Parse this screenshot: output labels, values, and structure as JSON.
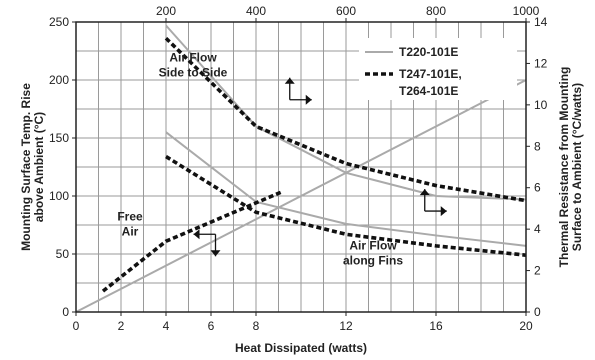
{
  "chart_data": {
    "type": "line",
    "xlabel": "Heat Dissipated (watts)",
    "ylabel_left": [
      "Mounting Surface Temp. Rise",
      "above Ambient (°C)"
    ],
    "ylabel_right": [
      "Thermal Resistance from Mounting",
      "Surface to Ambient (°C/watts)"
    ],
    "xlim_bottom": [
      0,
      20
    ],
    "xlim_top": [
      0,
      1000
    ],
    "ylim_left": [
      0,
      250
    ],
    "ylim_right": [
      0,
      14
    ],
    "x_ticks_bottom": [
      "0",
      "2",
      "4",
      "6",
      "8",
      "12",
      "16",
      "20"
    ],
    "x_tick_values_bottom": [
      0,
      2,
      4,
      6,
      8,
      12,
      16,
      20
    ],
    "x_ticks_top": [
      "200",
      "400",
      "600",
      "800",
      "1000"
    ],
    "x_tick_values_top": [
      200,
      400,
      600,
      800,
      1000
    ],
    "y_ticks_left": [
      "0",
      "50",
      "100",
      "150",
      "200",
      "250"
    ],
    "y_tick_values_left": [
      0,
      50,
      100,
      150,
      200,
      250
    ],
    "y_ticks_right": [
      "0",
      "2",
      "4",
      "6",
      "8",
      "10",
      "12",
      "14"
    ],
    "y_tick_values_right": [
      0,
      2,
      4,
      6,
      8,
      10,
      12,
      14
    ],
    "grid": true,
    "legend_position": "top-right",
    "series": [
      {
        "name": "T220-101E",
        "style": "solid",
        "color": "#aaaaaa",
        "axis": "left",
        "x": [
          0,
          20
        ],
        "y": [
          0,
          200
        ]
      },
      {
        "name": "T220-101E",
        "style": "solid",
        "color": "#aaaaaa",
        "axis": "left",
        "x": [
          4,
          8,
          12,
          16,
          20
        ],
        "y": [
          247,
          160,
          120,
          100,
          97
        ]
      },
      {
        "name": "T220-101E",
        "style": "solid",
        "color": "#aaaaaa",
        "axis": "left",
        "x": [
          4,
          8,
          12,
          16,
          20
        ],
        "y": [
          155,
          95,
          76,
          66,
          57
        ]
      },
      {
        "name": "T247-101E, T264-101E",
        "style": "dashed",
        "color": "#111111",
        "axis": "left",
        "x": [
          1.2,
          4,
          9.2
        ],
        "y": [
          18,
          61,
          104
        ]
      },
      {
        "name": "T247-101E, T264-101E",
        "style": "dashed",
        "color": "#111111",
        "axis": "left",
        "x": [
          4,
          8,
          12,
          16,
          20
        ],
        "y": [
          236,
          160,
          128,
          109,
          96
        ]
      },
      {
        "name": "T247-101E, T264-101E",
        "style": "dashed",
        "color": "#111111",
        "axis": "left",
        "x": [
          4,
          8,
          12,
          16,
          20
        ],
        "y": [
          134,
          86,
          67,
          57,
          49
        ]
      }
    ],
    "legend": [
      {
        "label": "T220-101E",
        "style": "solid",
        "color": "#aaaaaa"
      },
      {
        "label": "T247-101E,",
        "label2": "T264-101E",
        "style": "dashed",
        "color": "#111111"
      }
    ],
    "annotations": [
      {
        "lines": [
          "Air Flow",
          "Side to Side"
        ],
        "x": 5.2,
        "y": 216
      },
      {
        "lines": [
          "Free",
          "Air"
        ],
        "x": 2.4,
        "y": 79
      },
      {
        "lines": [
          "Air Flow",
          "along Fins"
        ],
        "x": 13.2,
        "y": 54
      }
    ],
    "arrows": [
      {
        "x": 9.5,
        "y": 183,
        "dir_h": "right",
        "dir_v": "up"
      },
      {
        "x": 6.2,
        "y": 67,
        "dir_h": "left",
        "dir_v": "down"
      },
      {
        "x": 15.5,
        "y": 87,
        "dir_h": "right",
        "dir_v": "up"
      }
    ]
  }
}
